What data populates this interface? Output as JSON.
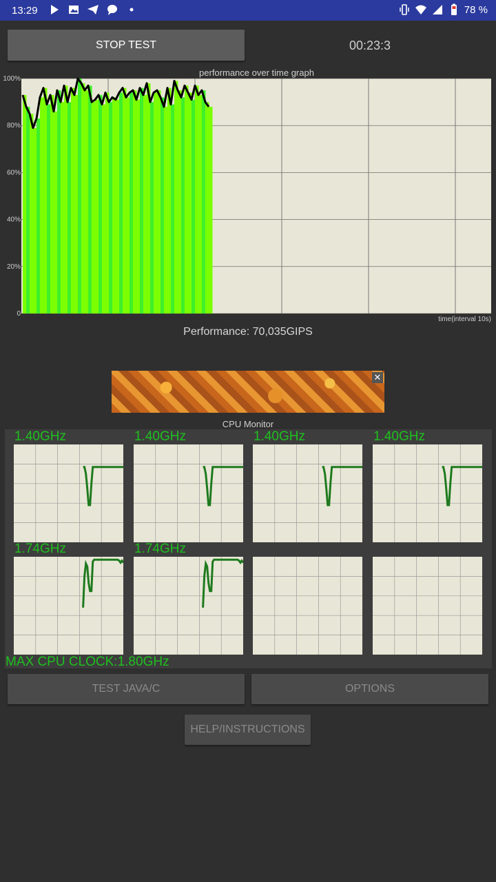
{
  "status_bar": {
    "time": "13:29",
    "left_icons": [
      "play-icon",
      "image-icon",
      "telegram-icon",
      "message-icon",
      "dot-icon"
    ],
    "right_icons": [
      "vibrate-icon",
      "wifi-icon",
      "signal-icon",
      "battery-icon"
    ],
    "battery": "78 %"
  },
  "controls": {
    "stop_test": "STOP TEST",
    "timer": "00:23:3",
    "test_java": "TEST JAVA/C",
    "options": "OPTIONS",
    "help": "HELP/INSTRUCTIONS"
  },
  "performance_graph": {
    "title": "performance over time graph",
    "y_ticks": [
      "100%",
      "80%",
      "60%",
      "40%",
      "20%",
      "0"
    ],
    "x_label": "time(interval 10s)",
    "performance_text": "Performance: 70,035GIPS",
    "line_color": "#000000",
    "fill_colors": [
      "#7cff00",
      "#3ff02a"
    ]
  },
  "chart_data": {
    "type": "area",
    "title": "performance over time graph",
    "xlabel": "time(interval 10s)",
    "ylabel": "",
    "ylim": [
      0,
      100
    ],
    "x_minor_intervals": 54,
    "x_interval_seconds": 10,
    "grid": true,
    "series": [
      {
        "values": [
          93,
          88,
          85,
          79,
          83,
          92,
          96,
          89,
          93,
          86,
          95,
          90,
          97,
          90,
          96,
          93,
          100,
          98,
          95,
          97,
          90,
          91,
          93,
          89,
          94,
          90,
          92,
          91,
          94,
          96,
          92,
          94,
          95,
          91,
          96,
          93,
          98,
          90,
          94,
          95,
          92,
          88,
          96,
          89,
          99,
          95,
          92,
          97,
          94,
          91,
          97,
          93,
          95,
          90,
          88
        ]
      }
    ]
  },
  "cpu_monitor": {
    "title": "CPU Monitor",
    "max_clock": "MAX CPU CLOCK:1.80GHz",
    "cores": [
      {
        "freq": "1.40GHz",
        "trace": [
          null,
          null,
          null,
          null,
          null,
          null,
          null,
          null,
          null,
          null,
          null,
          null,
          null,
          null,
          null,
          null,
          null,
          null,
          null,
          null,
          null,
          null,
          null,
          null,
          null,
          null,
          null,
          null,
          null,
          null,
          null,
          null,
          null,
          null,
          null,
          null,
          null,
          null,
          null,
          null,
          null,
          null,
          null,
          null,
          null,
          null,
          null,
          null,
          null,
          null,
          0.77,
          0.77,
          0.7,
          0.55,
          0.38,
          0.38,
          0.6,
          0.77,
          0.77,
          0.77,
          0.77,
          0.77,
          0.77,
          0.77,
          0.77,
          0.77,
          0.77,
          0.77,
          0.77,
          0.77,
          0.77,
          0.77,
          0.77,
          0.77,
          0.77,
          0.77,
          0.77,
          0.77,
          0.77,
          0.77
        ]
      },
      {
        "freq": "1.40GHz",
        "trace": [
          null,
          null,
          null,
          null,
          null,
          null,
          null,
          null,
          null,
          null,
          null,
          null,
          null,
          null,
          null,
          null,
          null,
          null,
          null,
          null,
          null,
          null,
          null,
          null,
          null,
          null,
          null,
          null,
          null,
          null,
          null,
          null,
          null,
          null,
          null,
          null,
          null,
          null,
          null,
          null,
          null,
          null,
          null,
          null,
          null,
          null,
          null,
          null,
          null,
          null,
          0.77,
          0.77,
          0.7,
          0.55,
          0.38,
          0.38,
          0.6,
          0.77,
          0.77,
          0.77,
          0.77,
          0.77,
          0.77,
          0.77,
          0.77,
          0.77,
          0.77,
          0.77,
          0.77,
          0.77,
          0.77,
          0.77,
          0.77,
          0.77,
          0.77,
          0.77,
          0.77,
          0.77,
          0.77,
          0.77
        ]
      },
      {
        "freq": "1.40GHz",
        "trace": [
          null,
          null,
          null,
          null,
          null,
          null,
          null,
          null,
          null,
          null,
          null,
          null,
          null,
          null,
          null,
          null,
          null,
          null,
          null,
          null,
          null,
          null,
          null,
          null,
          null,
          null,
          null,
          null,
          null,
          null,
          null,
          null,
          null,
          null,
          null,
          null,
          null,
          null,
          null,
          null,
          null,
          null,
          null,
          null,
          null,
          null,
          null,
          null,
          null,
          null,
          0.77,
          0.77,
          0.7,
          0.55,
          0.38,
          0.38,
          0.6,
          0.77,
          0.77,
          0.77,
          0.77,
          0.77,
          0.77,
          0.77,
          0.77,
          0.77,
          0.77,
          0.77,
          0.77,
          0.77,
          0.77,
          0.77,
          0.77,
          0.77,
          0.77,
          0.77,
          0.77,
          0.77,
          0.77,
          0.77
        ]
      },
      {
        "freq": "1.40GHz",
        "trace": [
          null,
          null,
          null,
          null,
          null,
          null,
          null,
          null,
          null,
          null,
          null,
          null,
          null,
          null,
          null,
          null,
          null,
          null,
          null,
          null,
          null,
          null,
          null,
          null,
          null,
          null,
          null,
          null,
          null,
          null,
          null,
          null,
          null,
          null,
          null,
          null,
          null,
          null,
          null,
          null,
          null,
          null,
          null,
          null,
          null,
          null,
          null,
          null,
          null,
          null,
          0.77,
          0.77,
          0.7,
          0.55,
          0.38,
          0.38,
          0.6,
          0.77,
          0.77,
          0.77,
          0.77,
          0.77,
          0.77,
          0.77,
          0.77,
          0.77,
          0.77,
          0.77,
          0.77,
          0.77,
          0.77,
          0.77,
          0.77,
          0.77,
          0.77,
          0.77,
          0.77,
          0.77,
          0.77,
          0.77
        ]
      },
      {
        "freq": "1.74GHz",
        "trace": [
          null,
          null,
          null,
          null,
          null,
          null,
          null,
          null,
          null,
          null,
          null,
          null,
          null,
          null,
          null,
          null,
          null,
          null,
          null,
          null,
          null,
          null,
          null,
          null,
          null,
          null,
          null,
          null,
          null,
          null,
          null,
          null,
          null,
          null,
          null,
          null,
          null,
          null,
          null,
          null,
          null,
          null,
          null,
          null,
          null,
          null,
          null,
          null,
          null,
          null,
          0.48,
          0.8,
          0.93,
          0.9,
          0.73,
          0.65,
          0.65,
          0.95,
          0.97,
          0.97,
          0.97,
          0.97,
          0.97,
          0.97,
          0.97,
          0.97,
          0.97,
          0.97,
          0.97,
          0.97,
          0.97,
          0.97,
          0.97,
          0.97,
          0.97,
          0.97,
          0.96,
          0.94,
          0.96,
          0.94
        ]
      },
      {
        "freq": "1.74GHz",
        "trace": [
          null,
          null,
          null,
          null,
          null,
          null,
          null,
          null,
          null,
          null,
          null,
          null,
          null,
          null,
          null,
          null,
          null,
          null,
          null,
          null,
          null,
          null,
          null,
          null,
          null,
          null,
          null,
          null,
          null,
          null,
          null,
          null,
          null,
          null,
          null,
          null,
          null,
          null,
          null,
          null,
          null,
          null,
          null,
          null,
          null,
          null,
          null,
          null,
          null,
          null,
          0.48,
          0.8,
          0.93,
          0.9,
          0.73,
          0.65,
          0.65,
          0.95,
          0.97,
          0.97,
          0.97,
          0.97,
          0.97,
          0.97,
          0.97,
          0.97,
          0.97,
          0.97,
          0.97,
          0.97,
          0.97,
          0.97,
          0.97,
          0.97,
          0.97,
          0.97,
          0.96,
          0.94,
          0.96,
          0.94
        ]
      },
      {
        "freq": "",
        "trace": []
      },
      {
        "freq": "",
        "trace": []
      }
    ]
  }
}
